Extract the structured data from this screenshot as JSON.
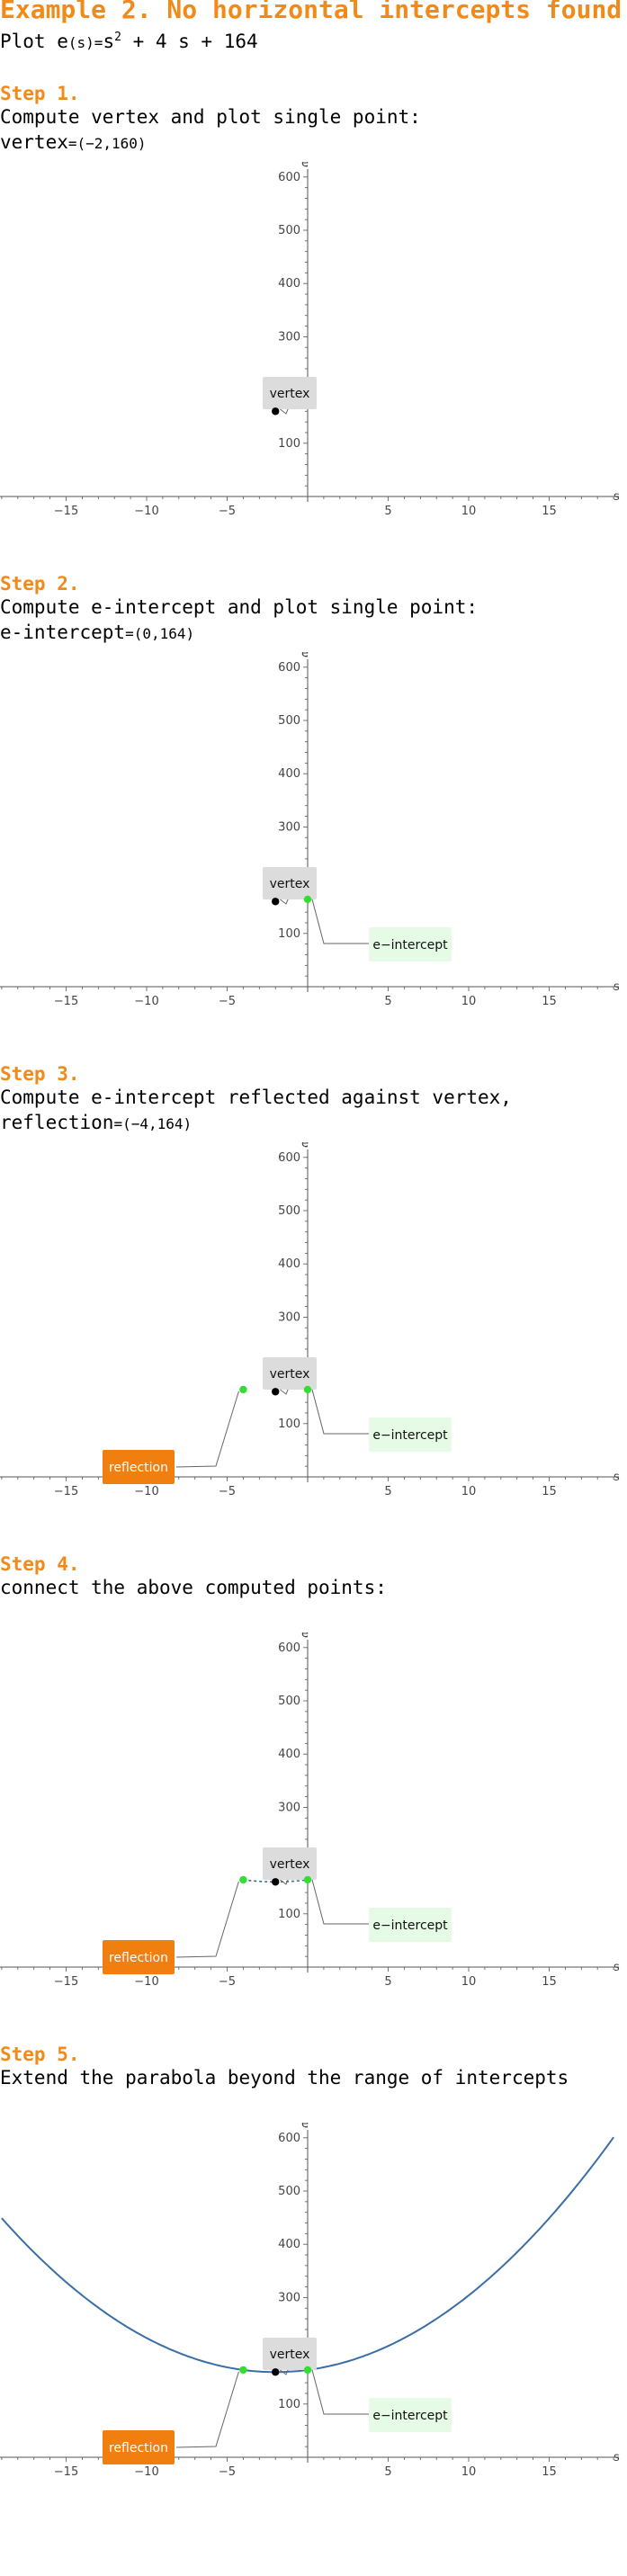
{
  "header": {
    "title": "Example 2. No horizontal intercepts found",
    "plot_prefix": "Plot",
    "func_name": "e",
    "func_arg": "(s)",
    "func_eq": "=",
    "func_s": "s",
    "func_exp": "2",
    "func_rest": "+ 4 s + 164"
  },
  "steps": [
    {
      "title": "Step 1.",
      "line1": "Compute vertex and plot single point:",
      "line2_label": "vertex",
      "line2_eq": "=",
      "line2_value": "(−2,160)"
    },
    {
      "title": "Step 2.",
      "line1": "Compute e-intercept and plot single point:",
      "line2_label": "e-intercept",
      "line2_eq": "=",
      "line2_value": "(0,164)"
    },
    {
      "title": "Step 3.",
      "line1": "Compute e-intercept reflected against vertex,",
      "line2_label": "reflection",
      "line2_eq": "=",
      "line2_value": "(−4,164)"
    },
    {
      "title": "Step 4.",
      "line1": "connect the above computed points:",
      "line2_label": "",
      "line2_eq": "",
      "line2_value": ""
    },
    {
      "title": "Step 5.",
      "line1": "Extend the parabola beyond the range of intercepts",
      "line2_label": "",
      "line2_eq": "",
      "line2_value": ""
    }
  ],
  "chart_data": [
    {
      "type": "scatter",
      "xlabel": "s",
      "ylabel": "e",
      "xlim": [
        -19,
        19
      ],
      "ylim": [
        -15,
        640
      ],
      "xticks": [
        -15,
        -10,
        -5,
        5,
        10,
        15
      ],
      "yticks": [
        100,
        200,
        300,
        400,
        500,
        600
      ],
      "points": [
        {
          "name": "vertex",
          "x": -2,
          "y": 160,
          "color": "#000000"
        }
      ],
      "labels": [
        {
          "text": "vertex",
          "color": "#dcdcdc"
        }
      ]
    },
    {
      "type": "scatter",
      "xlabel": "s",
      "ylabel": "e",
      "xlim": [
        -19,
        19
      ],
      "ylim": [
        -15,
        640
      ],
      "xticks": [
        -15,
        -10,
        -5,
        5,
        10,
        15
      ],
      "yticks": [
        100,
        200,
        300,
        400,
        500,
        600
      ],
      "points": [
        {
          "name": "vertex",
          "x": -2,
          "y": 160,
          "color": "#000000"
        },
        {
          "name": "e-intercept",
          "x": 0,
          "y": 164,
          "color": "#33dd33"
        }
      ],
      "labels": [
        {
          "text": "vertex",
          "color": "#dcdcdc"
        },
        {
          "text": "e−intercept",
          "color": "#e6fbe6"
        }
      ]
    },
    {
      "type": "scatter",
      "xlabel": "s",
      "ylabel": "e",
      "xlim": [
        -19,
        19
      ],
      "ylim": [
        -15,
        640
      ],
      "xticks": [
        -15,
        -10,
        -5,
        5,
        10,
        15
      ],
      "yticks": [
        100,
        200,
        300,
        400,
        500,
        600
      ],
      "points": [
        {
          "name": "vertex",
          "x": -2,
          "y": 160,
          "color": "#000000"
        },
        {
          "name": "e-intercept",
          "x": 0,
          "y": 164,
          "color": "#33dd33"
        },
        {
          "name": "reflection",
          "x": -4,
          "y": 164,
          "color": "#33dd33"
        }
      ],
      "labels": [
        {
          "text": "vertex",
          "color": "#dcdcdc"
        },
        {
          "text": "e−intercept",
          "color": "#e6fbe6"
        },
        {
          "text": "reflection",
          "color": "#f07f10"
        }
      ]
    },
    {
      "type": "line",
      "xlabel": "s",
      "ylabel": "e",
      "xlim": [
        -19,
        19
      ],
      "ylim": [
        -15,
        640
      ],
      "xticks": [
        -15,
        -10,
        -5,
        5,
        10,
        15
      ],
      "yticks": [
        100,
        200,
        300,
        400,
        500,
        600
      ],
      "points": [
        {
          "name": "vertex",
          "x": -2,
          "y": 160,
          "color": "#000000"
        },
        {
          "name": "e-intercept",
          "x": 0,
          "y": 164,
          "color": "#33dd33"
        },
        {
          "name": "reflection",
          "x": -4,
          "y": 164,
          "color": "#33dd33"
        }
      ],
      "curve": {
        "a": 1,
        "b": 4,
        "c": 164,
        "from": -4,
        "to": 0,
        "dashed": true,
        "color": "#3b6ea5"
      },
      "labels": [
        {
          "text": "vertex",
          "color": "#dcdcdc"
        },
        {
          "text": "e−intercept",
          "color": "#e6fbe6"
        },
        {
          "text": "reflection",
          "color": "#f07f10"
        }
      ]
    },
    {
      "type": "line",
      "xlabel": "s",
      "ylabel": "e",
      "xlim": [
        -19,
        19
      ],
      "ylim": [
        -15,
        640
      ],
      "xticks": [
        -15,
        -10,
        -5,
        5,
        10,
        15
      ],
      "yticks": [
        100,
        200,
        300,
        400,
        500,
        600
      ],
      "points": [
        {
          "name": "vertex",
          "x": -2,
          "y": 160,
          "color": "#000000"
        },
        {
          "name": "e-intercept",
          "x": 0,
          "y": 164,
          "color": "#33dd33"
        },
        {
          "name": "reflection",
          "x": -4,
          "y": 164,
          "color": "#33dd33"
        }
      ],
      "curve": {
        "a": 1,
        "b": 4,
        "c": 164,
        "from": -19,
        "to": 19,
        "dashed": false,
        "color": "#3b6ea5"
      },
      "labels": [
        {
          "text": "vertex",
          "color": "#dcdcdc"
        },
        {
          "text": "e−intercept",
          "color": "#e6fbe6"
        },
        {
          "text": "reflection",
          "color": "#f07f10"
        }
      ]
    }
  ]
}
